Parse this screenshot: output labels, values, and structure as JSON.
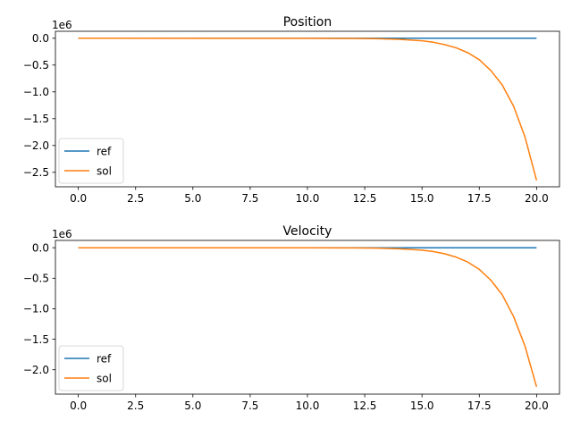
{
  "chart_data": [
    {
      "type": "line",
      "title": "Position",
      "xlabel": "",
      "ylabel": "",
      "offset_text": "1e6",
      "xlim": [
        -1.0,
        21.0
      ],
      "ylim": [
        -2.77,
        0.13
      ],
      "y_scale": 1000000,
      "xticks": [
        0.0,
        2.5,
        5.0,
        7.5,
        10.0,
        12.5,
        15.0,
        17.5,
        20.0
      ],
      "xtick_labels": [
        "0.0",
        "2.5",
        "5.0",
        "7.5",
        "10.0",
        "12.5",
        "15.0",
        "17.5",
        "20.0"
      ],
      "yticks": [
        0.0,
        -0.5,
        -1.0,
        -1.5,
        -2.0,
        -2.5
      ],
      "ytick_labels": [
        "0.0",
        "−0.5",
        "−1.0",
        "−1.5",
        "−2.0",
        "−2.5"
      ],
      "grid": false,
      "legend_position": "lower-left",
      "series": [
        {
          "name": "ref",
          "color": "#1f77b4",
          "x": [
            0,
            20
          ],
          "y": [
            0.0,
            0.0
          ]
        },
        {
          "name": "sol",
          "color": "#ff7f0e",
          "x": [
            0,
            10,
            12,
            13,
            14,
            15,
            15.5,
            16,
            16.5,
            17,
            17.5,
            18,
            18.5,
            19,
            19.5,
            20
          ],
          "y": [
            0.0,
            -0.001,
            -0.004,
            -0.008,
            -0.02,
            -0.048,
            -0.075,
            -0.12,
            -0.18,
            -0.27,
            -0.4,
            -0.6,
            -0.87,
            -1.27,
            -1.85,
            -2.65
          ]
        }
      ]
    },
    {
      "type": "line",
      "title": "Velocity",
      "xlabel": "",
      "ylabel": "",
      "offset_text": "1e6",
      "xlim": [
        -1.0,
        21.0
      ],
      "ylim": [
        -2.4,
        0.12
      ],
      "y_scale": 1000000,
      "xticks": [
        0.0,
        2.5,
        5.0,
        7.5,
        10.0,
        12.5,
        15.0,
        17.5,
        20.0
      ],
      "xtick_labels": [
        "0.0",
        "2.5",
        "5.0",
        "7.5",
        "10.0",
        "12.5",
        "15.0",
        "17.5",
        "20.0"
      ],
      "yticks": [
        0.0,
        -0.5,
        -1.0,
        -1.5,
        -2.0
      ],
      "ytick_labels": [
        "0.0",
        "−0.5",
        "−1.0",
        "−1.5",
        "−2.0"
      ],
      "grid": false,
      "legend_position": "lower-left",
      "series": [
        {
          "name": "ref",
          "color": "#1f77b4",
          "x": [
            0,
            20
          ],
          "y": [
            0.0,
            0.0
          ]
        },
        {
          "name": "sol",
          "color": "#ff7f0e",
          "x": [
            0,
            10,
            12,
            13,
            14,
            15,
            15.5,
            16,
            16.5,
            17,
            17.5,
            18,
            18.5,
            19,
            19.5,
            20
          ],
          "y": [
            0.0,
            -0.001,
            -0.003,
            -0.007,
            -0.017,
            -0.04,
            -0.063,
            -0.1,
            -0.155,
            -0.235,
            -0.355,
            -0.53,
            -0.77,
            -1.13,
            -1.62,
            -2.28
          ]
        }
      ]
    }
  ]
}
